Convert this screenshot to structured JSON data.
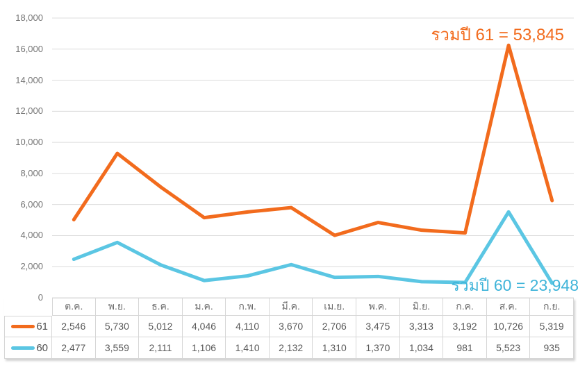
{
  "chart_data": {
    "type": "line",
    "stacked": true,
    "title": "",
    "categories": [
      "ต.ค.",
      "พ.ย.",
      "ธ.ค.",
      "ม.ค.",
      "ก.พ.",
      "มี.ค.",
      "เม.ย.",
      "พ.ค.",
      "มิ.ย.",
      "ก.ค.",
      "ส.ค.",
      "ก.ย."
    ],
    "series": [
      {
        "name": "61",
        "color": "#F26B1D",
        "values": [
          2546,
          5730,
          5012,
          4046,
          4110,
          3670,
          2706,
          3475,
          3313,
          3192,
          10726,
          5319
        ],
        "total": 53845
      },
      {
        "name": "60",
        "color": "#5BC6E3",
        "values": [
          2477,
          3559,
          2111,
          1106,
          1410,
          2132,
          1310,
          1370,
          1034,
          981,
          5523,
          935
        ],
        "total": 23948
      }
    ],
    "ylim": [
      0,
      18000
    ],
    "ytick_step": 2000,
    "ytick_labels": [
      "0",
      "2,000",
      "4,000",
      "6,000",
      "8,000",
      "10,000",
      "12,000",
      "14,000",
      "16,000",
      "18,000"
    ],
    "grid": true,
    "gridline_color": "#dcdcdc",
    "legend_position": "table-left",
    "annotations": [
      {
        "id": "total-61",
        "text": "รวมปี 61 = 53,845",
        "color": "#F26B1D"
      },
      {
        "id": "total-60",
        "text": "รวมปี 60 = 23,948",
        "color": "#3FB4D9"
      }
    ]
  },
  "table": {
    "columns": [
      "ต.ค.",
      "พ.ย.",
      "ธ.ค.",
      "ม.ค.",
      "ก.พ.",
      "มี.ค.",
      "เม.ย.",
      "พ.ค.",
      "มิ.ย.",
      "ก.ค.",
      "ส.ค.",
      "ก.ย."
    ],
    "rows": [
      {
        "legend": "61",
        "color": "#F26B1D",
        "cells": [
          "2,546",
          "5,730",
          "5,012",
          "4,046",
          "4,110",
          "3,670",
          "2,706",
          "3,475",
          "3,313",
          "3,192",
          "10,726",
          "5,319"
        ]
      },
      {
        "legend": "60",
        "color": "#5BC6E3",
        "cells": [
          "2,477",
          "3,559",
          "2,111",
          "1,106",
          "1,410",
          "2,132",
          "1,310",
          "1,370",
          "1,034",
          "981",
          "5,523",
          "935"
        ]
      }
    ]
  }
}
